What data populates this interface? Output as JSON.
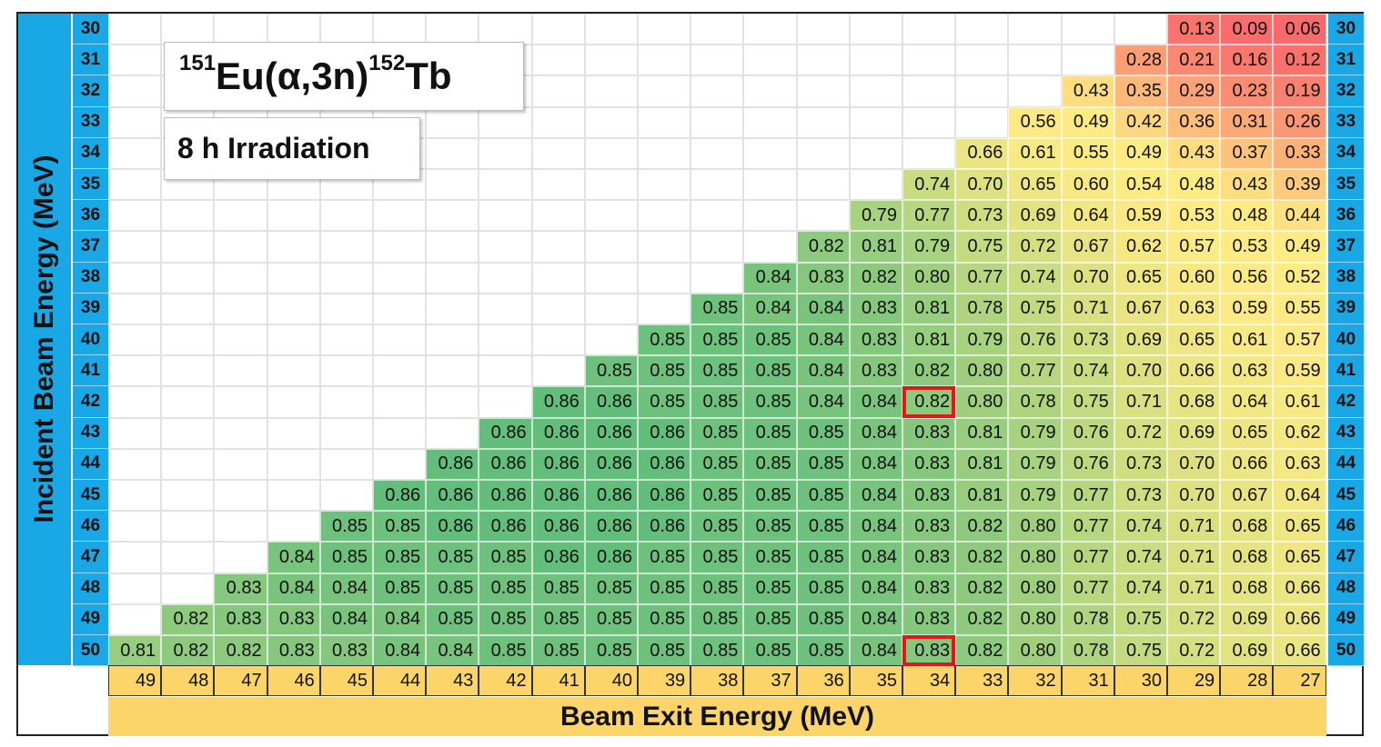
{
  "chart_data": {
    "type": "heatmap",
    "title_parts": {
      "target_mass": "151",
      "target": "Eu",
      "reaction": "(α,3n)",
      "product_mass": "152",
      "product": "Tb"
    },
    "subtitle": "8 h Irradiation",
    "xlabel": "Beam Exit Energy (MeV)",
    "ylabel": "Incident Beam Energy (MeV)",
    "x_categories": [
      "49",
      "48",
      "47",
      "46",
      "45",
      "44",
      "43",
      "42",
      "41",
      "40",
      "39",
      "38",
      "37",
      "36",
      "35",
      "34",
      "33",
      "32",
      "31",
      "30",
      "29",
      "28",
      "27"
    ],
    "y_categories": [
      "30",
      "31",
      "32",
      "33",
      "34",
      "35",
      "36",
      "37",
      "38",
      "39",
      "40",
      "41",
      "42",
      "43",
      "44",
      "45",
      "46",
      "47",
      "48",
      "49",
      "50"
    ],
    "values": [
      [
        "",
        "",
        "",
        "",
        "",
        "",
        "",
        "",
        "",
        "",
        "",
        "",
        "",
        "",
        "",
        "",
        "",
        "",
        "",
        "",
        "0.13",
        "0.09",
        "0.06"
      ],
      [
        "",
        "",
        "",
        "",
        "",
        "",
        "",
        "",
        "",
        "",
        "",
        "",
        "",
        "",
        "",
        "",
        "",
        "",
        "",
        "0.28",
        "0.21",
        "0.16",
        "0.12"
      ],
      [
        "",
        "",
        "",
        "",
        "",
        "",
        "",
        "",
        "",
        "",
        "",
        "",
        "",
        "",
        "",
        "",
        "",
        "",
        "0.43",
        "0.35",
        "0.29",
        "0.23",
        "0.19"
      ],
      [
        "",
        "",
        "",
        "",
        "",
        "",
        "",
        "",
        "",
        "",
        "",
        "",
        "",
        "",
        "",
        "",
        "",
        "0.56",
        "0.49",
        "0.42",
        "0.36",
        "0.31",
        "0.26"
      ],
      [
        "",
        "",
        "",
        "",
        "",
        "",
        "",
        "",
        "",
        "",
        "",
        "",
        "",
        "",
        "",
        "",
        "0.66",
        "0.61",
        "0.55",
        "0.49",
        "0.43",
        "0.37",
        "0.33"
      ],
      [
        "",
        "",
        "",
        "",
        "",
        "",
        "",
        "",
        "",
        "",
        "",
        "",
        "",
        "",
        "",
        "0.74",
        "0.70",
        "0.65",
        "0.60",
        "0.54",
        "0.48",
        "0.43",
        "0.39"
      ],
      [
        "",
        "",
        "",
        "",
        "",
        "",
        "",
        "",
        "",
        "",
        "",
        "",
        "",
        "",
        "0.79",
        "0.77",
        "0.73",
        "0.69",
        "0.64",
        "0.59",
        "0.53",
        "0.48",
        "0.44"
      ],
      [
        "",
        "",
        "",
        "",
        "",
        "",
        "",
        "",
        "",
        "",
        "",
        "",
        "",
        "0.82",
        "0.81",
        "0.79",
        "0.75",
        "0.72",
        "0.67",
        "0.62",
        "0.57",
        "0.53",
        "0.49"
      ],
      [
        "",
        "",
        "",
        "",
        "",
        "",
        "",
        "",
        "",
        "",
        "",
        "",
        "0.84",
        "0.83",
        "0.82",
        "0.80",
        "0.77",
        "0.74",
        "0.70",
        "0.65",
        "0.60",
        "0.56",
        "0.52"
      ],
      [
        "",
        "",
        "",
        "",
        "",
        "",
        "",
        "",
        "",
        "",
        "",
        "0.85",
        "0.84",
        "0.84",
        "0.83",
        "0.81",
        "0.78",
        "0.75",
        "0.71",
        "0.67",
        "0.63",
        "0.59",
        "0.55"
      ],
      [
        "",
        "",
        "",
        "",
        "",
        "",
        "",
        "",
        "",
        "",
        "0.85",
        "0.85",
        "0.85",
        "0.84",
        "0.83",
        "0.81",
        "0.79",
        "0.76",
        "0.73",
        "0.69",
        "0.65",
        "0.61",
        "0.57"
      ],
      [
        "",
        "",
        "",
        "",
        "",
        "",
        "",
        "",
        "",
        "0.85",
        "0.85",
        "0.85",
        "0.85",
        "0.84",
        "0.83",
        "0.82",
        "0.80",
        "0.77",
        "0.74",
        "0.70",
        "0.66",
        "0.63",
        "0.59"
      ],
      [
        "",
        "",
        "",
        "",
        "",
        "",
        "",
        "",
        "0.86",
        "0.86",
        "0.85",
        "0.85",
        "0.85",
        "0.84",
        "0.84",
        "0.82",
        "0.80",
        "0.78",
        "0.75",
        "0.71",
        "0.68",
        "0.64",
        "0.61"
      ],
      [
        "",
        "",
        "",
        "",
        "",
        "",
        "",
        "0.86",
        "0.86",
        "0.86",
        "0.86",
        "0.85",
        "0.85",
        "0.85",
        "0.84",
        "0.83",
        "0.81",
        "0.79",
        "0.76",
        "0.72",
        "0.69",
        "0.65",
        "0.62"
      ],
      [
        "",
        "",
        "",
        "",
        "",
        "",
        "0.86",
        "0.86",
        "0.86",
        "0.86",
        "0.86",
        "0.85",
        "0.85",
        "0.85",
        "0.84",
        "0.83",
        "0.81",
        "0.79",
        "0.76",
        "0.73",
        "0.70",
        "0.66",
        "0.63"
      ],
      [
        "",
        "",
        "",
        "",
        "",
        "0.86",
        "0.86",
        "0.86",
        "0.86",
        "0.86",
        "0.86",
        "0.85",
        "0.85",
        "0.85",
        "0.84",
        "0.83",
        "0.81",
        "0.79",
        "0.77",
        "0.73",
        "0.70",
        "0.67",
        "0.64"
      ],
      [
        "",
        "",
        "",
        "",
        "0.85",
        "0.85",
        "0.86",
        "0.86",
        "0.86",
        "0.86",
        "0.86",
        "0.85",
        "0.85",
        "0.85",
        "0.84",
        "0.83",
        "0.82",
        "0.80",
        "0.77",
        "0.74",
        "0.71",
        "0.68",
        "0.65"
      ],
      [
        "",
        "",
        "",
        "0.84",
        "0.85",
        "0.85",
        "0.85",
        "0.85",
        "0.86",
        "0.86",
        "0.85",
        "0.85",
        "0.85",
        "0.85",
        "0.84",
        "0.83",
        "0.82",
        "0.80",
        "0.77",
        "0.74",
        "0.71",
        "0.68",
        "0.65"
      ],
      [
        "",
        "",
        "0.83",
        "0.84",
        "0.84",
        "0.85",
        "0.85",
        "0.85",
        "0.85",
        "0.85",
        "0.85",
        "0.85",
        "0.85",
        "0.85",
        "0.84",
        "0.83",
        "0.82",
        "0.80",
        "0.77",
        "0.74",
        "0.71",
        "0.68",
        "0.66"
      ],
      [
        "",
        "0.82",
        "0.83",
        "0.83",
        "0.84",
        "0.84",
        "0.85",
        "0.85",
        "0.85",
        "0.85",
        "0.85",
        "0.85",
        "0.85",
        "0.85",
        "0.84",
        "0.83",
        "0.82",
        "0.80",
        "0.78",
        "0.75",
        "0.72",
        "0.69",
        "0.66"
      ],
      [
        "0.81",
        "0.82",
        "0.82",
        "0.83",
        "0.83",
        "0.84",
        "0.84",
        "0.85",
        "0.85",
        "0.85",
        "0.85",
        "0.85",
        "0.85",
        "0.85",
        "0.84",
        "0.83",
        "0.82",
        "0.80",
        "0.78",
        "0.75",
        "0.72",
        "0.69",
        "0.66"
      ]
    ],
    "highlighted_cells": [
      {
        "incident": "42",
        "exit": "34"
      },
      {
        "incident": "50",
        "exit": "34"
      }
    ],
    "color_scale": {
      "low": "#f8696b",
      "mid": "#ffeb84",
      "high": "#63be7b",
      "min": 0.06,
      "max": 0.86
    }
  }
}
